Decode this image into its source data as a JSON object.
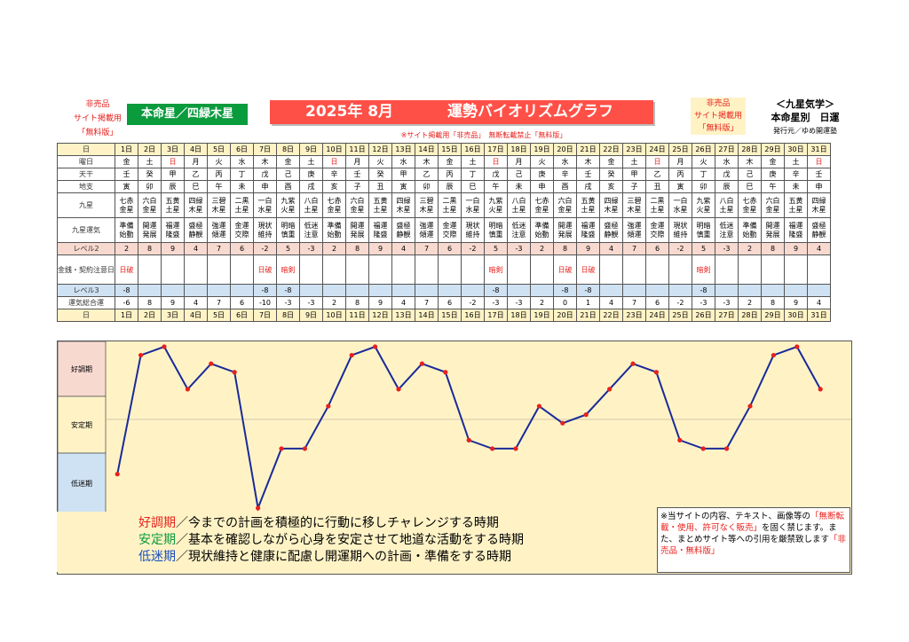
{
  "header": {
    "nonsale_left": [
      "非売品",
      "サイト掲載用",
      "「無料版」"
    ],
    "honmei": "本命星／四緑木星",
    "title_year": "2025年 8月",
    "title_text": "運勢バイオリズムグラフ",
    "nonsale_right": [
      "非売品",
      "サイト掲載用",
      "「無料版」"
    ],
    "kyusei_title": "＜九星気学＞",
    "kyusei_sub": "本命星別　日運",
    "publisher": "発行元／ゆめ開運塾",
    "warning": "※サイト掲載用「非売品」　無断転載禁止「無料版」"
  },
  "rows": {
    "day_label": "日",
    "days": [
      "1日",
      "2日",
      "3日",
      "4日",
      "5日",
      "6日",
      "7日",
      "8日",
      "9日",
      "10日",
      "11日",
      "12日",
      "13日",
      "14日",
      "15日",
      "16日",
      "17日",
      "18日",
      "19日",
      "20日",
      "21日",
      "22日",
      "23日",
      "24日",
      "25日",
      "26日",
      "27日",
      "28日",
      "29日",
      "30日",
      "31日"
    ],
    "weekday_label": "曜日",
    "weekdays": [
      "金",
      "土",
      "日",
      "月",
      "火",
      "水",
      "木",
      "金",
      "土",
      "日",
      "月",
      "火",
      "水",
      "木",
      "金",
      "土",
      "日",
      "月",
      "火",
      "水",
      "木",
      "金",
      "土",
      "日",
      "月",
      "火",
      "水",
      "木",
      "金",
      "土",
      "日"
    ],
    "tenkan_label": "天干",
    "tenkan": [
      "壬",
      "癸",
      "甲",
      "乙",
      "丙",
      "丁",
      "戊",
      "己",
      "庚",
      "辛",
      "壬",
      "癸",
      "甲",
      "乙",
      "丙",
      "丁",
      "戊",
      "己",
      "庚",
      "辛",
      "壬",
      "癸",
      "甲",
      "乙",
      "丙",
      "丁",
      "戊",
      "己",
      "庚",
      "辛",
      "壬"
    ],
    "chishi_label": "地支",
    "chishi": [
      "寅",
      "卯",
      "辰",
      "巳",
      "午",
      "未",
      "申",
      "酉",
      "戌",
      "亥",
      "子",
      "丑",
      "寅",
      "卯",
      "辰",
      "巳",
      "午",
      "未",
      "申",
      "酉",
      "戌",
      "亥",
      "子",
      "丑",
      "寅",
      "卯",
      "辰",
      "巳",
      "午",
      "未",
      "申"
    ],
    "kyusei_label": "九星",
    "kyusei": [
      "七赤金星",
      "六白金星",
      "五黄土星",
      "四緑木星",
      "三碧木星",
      "二黒土星",
      "一白水星",
      "九紫火星",
      "八白土星",
      "七赤金星",
      "六白金星",
      "五黄土星",
      "四緑木星",
      "三碧木星",
      "二黒土星",
      "一白水星",
      "九紫火星",
      "八白土星",
      "七赤金星",
      "六白金星",
      "五黄土星",
      "四緑木星",
      "三碧木星",
      "二黒土星",
      "一白水星",
      "九紫火星",
      "八白土星",
      "七赤金星",
      "六白金星",
      "五黄土星",
      "四緑木星"
    ],
    "unki_label": "九星運気",
    "unki": [
      "準備始動",
      "開運発展",
      "福運隆盛",
      "盛極静観",
      "強運傾運",
      "金運交際",
      "現状維持",
      "明暗慎重",
      "低迷注意",
      "準備始動",
      "開運発展",
      "福運隆盛",
      "盛極静観",
      "強運傾運",
      "金運交際",
      "現状維持",
      "明暗慎重",
      "低迷注意",
      "準備始動",
      "開運発展",
      "福運隆盛",
      "盛極静観",
      "強運傾運",
      "金運交際",
      "現状維持",
      "明暗慎重",
      "低迷注意",
      "準備始動",
      "開運発展",
      "福運隆盛",
      "盛極静観"
    ],
    "level2_label": "レベル2",
    "level2": [
      "2",
      "8",
      "9",
      "4",
      "7",
      "6",
      "-2",
      "5",
      "-3",
      "2",
      "8",
      "9",
      "4",
      "7",
      "6",
      "-2",
      "5",
      "-3",
      "2",
      "8",
      "9",
      "4",
      "7",
      "6",
      "-2",
      "5",
      "-3",
      "2",
      "8",
      "9",
      "4"
    ],
    "kinsen_label": "金銭・契約注意日",
    "kinsen": [
      "日破",
      "",
      "",
      "",
      "",
      "",
      "日破",
      "暗剣",
      "",
      "",
      "",
      "",
      "",
      "",
      "",
      "",
      "暗剣",
      "",
      "",
      "日破",
      "日破",
      "",
      "",
      "",
      "",
      "暗剣",
      "",
      "",
      "",
      "",
      ""
    ],
    "level3_label": "レベル3",
    "level3": [
      "-8",
      "",
      "",
      "",
      "",
      "",
      "-8",
      "-8",
      "",
      "",
      "",
      "",
      "",
      "",
      "",
      "",
      "-8",
      "",
      "",
      "-8",
      "-8",
      "",
      "",
      "",
      "",
      "-8",
      "",
      "",
      "",
      "",
      ""
    ],
    "total_label": "運気総合運",
    "total": [
      "-6",
      "8",
      "9",
      "4",
      "7",
      "6",
      "-10",
      "-3",
      "-3",
      "2",
      "8",
      "9",
      "4",
      "7",
      "6",
      "-2",
      "-3",
      "-3",
      "2",
      "0",
      "1",
      "4",
      "7",
      "6",
      "-2",
      "-3",
      "-3",
      "2",
      "8",
      "9",
      "4"
    ]
  },
  "colors": {
    "title_bg": "#ff5048",
    "honmei_bg": "#0a9b3d",
    "panel": "#fff3c6",
    "good": "#f8d9d0",
    "bad": "#cfe2f3",
    "line": "#1a2a9a",
    "point": "#e8211c"
  },
  "chart_data": {
    "type": "line",
    "x": [
      1,
      2,
      3,
      4,
      5,
      6,
      7,
      8,
      9,
      10,
      11,
      12,
      13,
      14,
      15,
      16,
      17,
      18,
      19,
      20,
      21,
      22,
      23,
      24,
      25,
      26,
      27,
      28,
      29,
      30,
      31
    ],
    "values": [
      -6,
      8,
      9,
      4,
      7,
      6,
      -10,
      -3,
      -3,
      2,
      8,
      9,
      4,
      7,
      6,
      -2,
      -3,
      -3,
      2,
      0,
      1,
      4,
      7,
      6,
      -2,
      -3,
      -3,
      2,
      8,
      9,
      4
    ],
    "ylim": [
      -10,
      9
    ],
    "bands": [
      "好調期",
      "安定期",
      "低迷期"
    ]
  },
  "legend": {
    "good_title": "好調期",
    "good_text": "／今までの計画を積極的に行動に移しチャレンジする時期",
    "stable_title": "安定期",
    "stable_text": "／基本を確認しながら心身を安定させて地道な活動をする時期",
    "low_title": "低迷期",
    "low_text": "／現状維持と健康に配慮し開運期への計画・準備をする時期"
  },
  "notice": {
    "p1": "※当サイトの内容、テキスト、画像等の",
    "p2": "「無断転載・使用、許可なく販売」",
    "p3": "を固く禁じます。また、まとめサイト等への引用を厳禁致します",
    "p4": "「非売品・無料版」"
  }
}
